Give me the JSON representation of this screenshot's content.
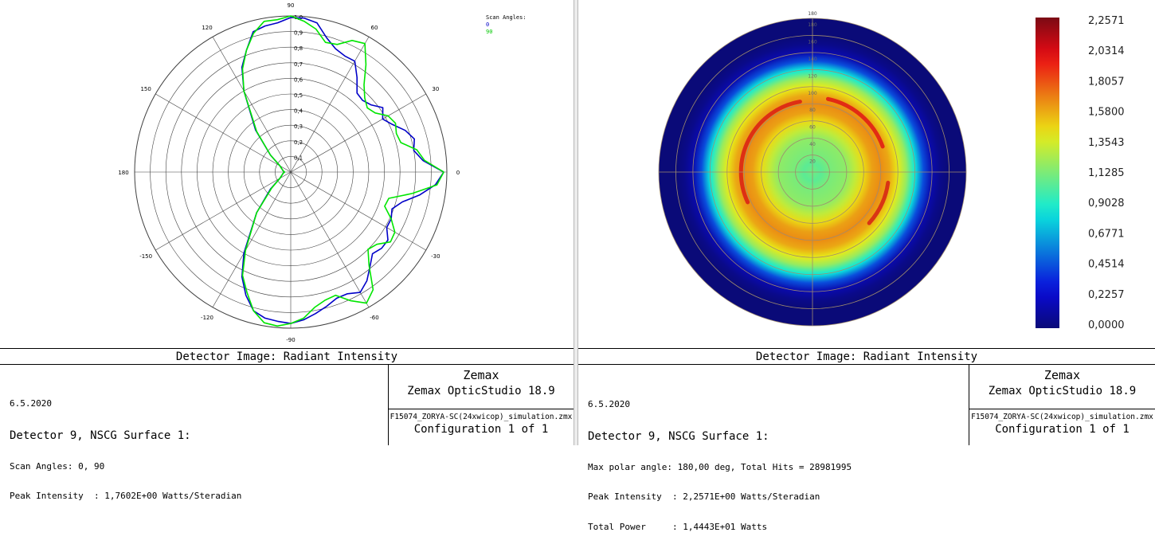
{
  "chart_data": [
    {
      "type": "polar-line",
      "title": "Detector Image: Radiant Intensity",
      "radial_range": [
        0,
        1.0
      ],
      "radial_ticks": [
        "0,1",
        "0,2",
        "0,3",
        "0,4",
        "0,5",
        "0,6",
        "0,7",
        "0,8",
        "0,9",
        "1,0"
      ],
      "angle_ticks": [
        "90",
        "60",
        "30",
        "0",
        "-30",
        "-60",
        "-90",
        "-120",
        "-150",
        "180",
        "150",
        "120"
      ],
      "legend_title": "Scan Angles:",
      "series": [
        {
          "name": "0",
          "color": "#0000c8",
          "points": [
            [
              0,
              0.98
            ],
            [
              5,
              0.85
            ],
            [
              10,
              0.8
            ],
            [
              15,
              0.82
            ],
            [
              20,
              0.78
            ],
            [
              25,
              0.72
            ],
            [
              30,
              0.68
            ],
            [
              35,
              0.72
            ],
            [
              40,
              0.67
            ],
            [
              45,
              0.65
            ],
            [
              50,
              0.66
            ],
            [
              55,
              0.74
            ],
            [
              60,
              0.82
            ],
            [
              65,
              0.82
            ],
            [
              70,
              0.84
            ],
            [
              75,
              0.89
            ],
            [
              80,
              0.97
            ],
            [
              85,
              0.99
            ],
            [
              90,
              0.99
            ],
            [
              95,
              0.96
            ],
            [
              100,
              0.95
            ],
            [
              105,
              0.93
            ],
            [
              110,
              0.83
            ],
            [
              115,
              0.74
            ],
            [
              120,
              0.6
            ],
            [
              130,
              0.35
            ],
            [
              140,
              0.17
            ],
            [
              150,
              0.08
            ],
            [
              160,
              0.06
            ],
            [
              170,
              0.05
            ],
            [
              180,
              0.04
            ],
            [
              190,
              0.05
            ],
            [
              200,
              0.06
            ],
            [
              210,
              0.08
            ],
            [
              220,
              0.17
            ],
            [
              230,
              0.34
            ],
            [
              240,
              0.6
            ],
            [
              245,
              0.74
            ],
            [
              250,
              0.84
            ],
            [
              255,
              0.92
            ],
            [
              260,
              0.95
            ],
            [
              265,
              0.96
            ],
            [
              270,
              0.97
            ],
            [
              275,
              0.95
            ],
            [
              280,
              0.92
            ],
            [
              285,
              0.89
            ],
            [
              290,
              0.86
            ],
            [
              295,
              0.86
            ],
            [
              300,
              0.89
            ],
            [
              305,
              0.85
            ],
            [
              310,
              0.79
            ],
            [
              315,
              0.74
            ],
            [
              320,
              0.76
            ],
            [
              325,
              0.76
            ],
            [
              330,
              0.71
            ],
            [
              335,
              0.71
            ],
            [
              340,
              0.69
            ],
            [
              345,
              0.74
            ],
            [
              350,
              0.84
            ],
            [
              355,
              0.93
            ],
            [
              360,
              0.98
            ]
          ]
        },
        {
          "name": "90",
          "color": "#00e600",
          "points": [
            [
              0,
              0.98
            ],
            [
              5,
              0.86
            ],
            [
              10,
              0.82
            ],
            [
              15,
              0.73
            ],
            [
              20,
              0.72
            ],
            [
              25,
              0.74
            ],
            [
              30,
              0.72
            ],
            [
              35,
              0.66
            ],
            [
              40,
              0.64
            ],
            [
              45,
              0.67
            ],
            [
              50,
              0.73
            ],
            [
              55,
              0.84
            ],
            [
              60,
              0.95
            ],
            [
              65,
              0.93
            ],
            [
              70,
              0.87
            ],
            [
              75,
              0.86
            ],
            [
              80,
              0.93
            ],
            [
              85,
              0.97
            ],
            [
              90,
              1.0
            ],
            [
              95,
              0.98
            ],
            [
              100,
              0.98
            ],
            [
              105,
              0.92
            ],
            [
              110,
              0.83
            ],
            [
              115,
              0.73
            ],
            [
              120,
              0.6
            ],
            [
              130,
              0.34
            ],
            [
              140,
              0.17
            ],
            [
              150,
              0.08
            ],
            [
              160,
              0.06
            ],
            [
              170,
              0.05
            ],
            [
              180,
              0.04
            ],
            [
              190,
              0.05
            ],
            [
              200,
              0.06
            ],
            [
              210,
              0.08
            ],
            [
              220,
              0.16
            ],
            [
              230,
              0.34
            ],
            [
              240,
              0.58
            ],
            [
              245,
              0.73
            ],
            [
              250,
              0.82
            ],
            [
              255,
              0.92
            ],
            [
              260,
              0.98
            ],
            [
              265,
              0.99
            ],
            [
              270,
              0.97
            ],
            [
              275,
              0.94
            ],
            [
              280,
              0.88
            ],
            [
              285,
              0.85
            ],
            [
              290,
              0.84
            ],
            [
              295,
              0.91
            ],
            [
              300,
              0.97
            ],
            [
              305,
              0.92
            ],
            [
              310,
              0.78
            ],
            [
              315,
              0.7
            ],
            [
              320,
              0.72
            ],
            [
              325,
              0.78
            ],
            [
              330,
              0.77
            ],
            [
              335,
              0.71
            ],
            [
              340,
              0.64
            ],
            [
              345,
              0.65
            ],
            [
              350,
              0.79
            ],
            [
              355,
              0.94
            ],
            [
              360,
              0.98
            ]
          ]
        }
      ]
    },
    {
      "type": "heatmap",
      "title": "Detector Image: Radiant Intensity",
      "subtype": "polar-intensity-map",
      "radial_axis_labels": [
        "20",
        "40",
        "60",
        "80",
        "100",
        "120",
        "140",
        "160",
        "180"
      ],
      "top_label": "180",
      "colorbar": {
        "min": 0.0,
        "max": 2.2571,
        "tick_labels": [
          "2,2571",
          "2,0314",
          "1,8057",
          "1,5800",
          "1,3543",
          "1,1285",
          "0,9028",
          "0,6771",
          "0,4514",
          "0,2257",
          "0,0000"
        ]
      },
      "radial_profile": [
        [
          0,
          1.1
        ],
        [
          10,
          1.05
        ],
        [
          20,
          1.12
        ],
        [
          30,
          1.15
        ],
        [
          40,
          1.18
        ],
        [
          50,
          1.3
        ],
        [
          60,
          1.45
        ],
        [
          70,
          1.6
        ],
        [
          80,
          1.65
        ],
        [
          90,
          1.58
        ],
        [
          100,
          1.4
        ],
        [
          110,
          1.2
        ],
        [
          120,
          0.85
        ],
        [
          130,
          0.45
        ],
        [
          140,
          0.15
        ],
        [
          150,
          0.05
        ],
        [
          160,
          0.0
        ],
        [
          180,
          0.0
        ]
      ]
    }
  ],
  "left": {
    "legend_title": "Scan Angles:",
    "legend_0": "0",
    "legend_90": "90",
    "title": "Detector Image: Radiant Intensity",
    "date": "6.5.2020",
    "detector": "Detector 9, NSCG Surface 1:",
    "line3": "Scan Angles: 0, 90",
    "line4": "Peak Intensity  : 1,7602E+00 Watts/Steradian",
    "brand": "Zemax",
    "product": "Zemax OpticStudio 18.9",
    "file": "F15074_ZORYA-SC(24xwicop)_simulation.zmx",
    "config": "Configuration 1 of 1"
  },
  "right": {
    "title": "Detector Image: Radiant Intensity",
    "date": "6.5.2020",
    "detector": "Detector 9, NSCG Surface 1:",
    "line3": "Max polar angle: 180,00 deg, Total Hits = 28981995",
    "line4": "Peak Intensity  : 2,2571E+00 Watts/Steradian",
    "line5": "Total Power     : 1,4443E+01 Watts",
    "brand": "Zemax",
    "product": "Zemax OpticStudio 18.9",
    "file": "F15074_ZORYA-SC(24xwicop)_simulation.zmx",
    "config": "Configuration 1 of 1"
  },
  "colors": {
    "series_0": "#0000c8",
    "series_90": "#00e600",
    "grid": "#404040",
    "map_grid": "#a08c6e"
  }
}
